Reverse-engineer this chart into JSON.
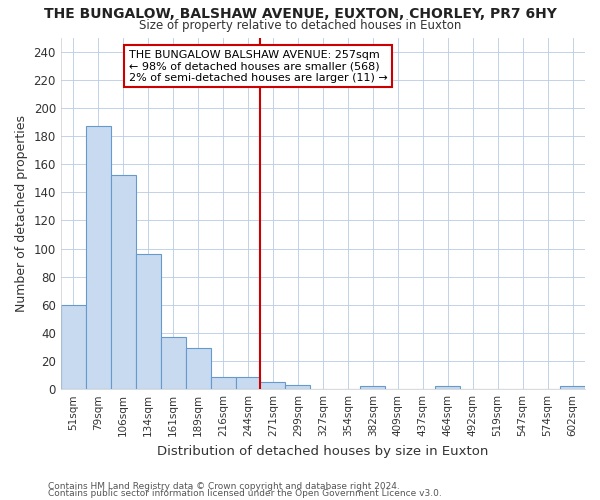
{
  "title1": "THE BUNGALOW, BALSHAW AVENUE, EUXTON, CHORLEY, PR7 6HY",
  "title2": "Size of property relative to detached houses in Euxton",
  "xlabel": "Distribution of detached houses by size in Euxton",
  "ylabel": "Number of detached properties",
  "footer1": "Contains HM Land Registry data © Crown copyright and database right 2024.",
  "footer2": "Contains public sector information licensed under the Open Government Licence v3.0.",
  "categories": [
    "51sqm",
    "79sqm",
    "106sqm",
    "134sqm",
    "161sqm",
    "189sqm",
    "216sqm",
    "244sqm",
    "271sqm",
    "299sqm",
    "327sqm",
    "354sqm",
    "382sqm",
    "409sqm",
    "437sqm",
    "464sqm",
    "492sqm",
    "519sqm",
    "547sqm",
    "574sqm",
    "602sqm"
  ],
  "values": [
    60,
    187,
    152,
    96,
    37,
    29,
    9,
    9,
    5,
    3,
    0,
    0,
    2,
    0,
    0,
    2,
    0,
    0,
    0,
    0,
    2
  ],
  "bar_color": "#c8daf0",
  "bar_edge_color": "#6699cc",
  "vline_color": "#cc0000",
  "annotation_text": "THE BUNGALOW BALSHAW AVENUE: 257sqm\n← 98% of detached houses are smaller (568)\n2% of semi-detached houses are larger (11) →",
  "annotation_box_color": "#ffffff",
  "annotation_box_edge": "#cc0000",
  "ylim": [
    0,
    250
  ],
  "yticks": [
    0,
    20,
    40,
    60,
    80,
    100,
    120,
    140,
    160,
    180,
    200,
    220,
    240
  ],
  "grid_color": "#b8cce4",
  "bg_color": "#ffffff"
}
